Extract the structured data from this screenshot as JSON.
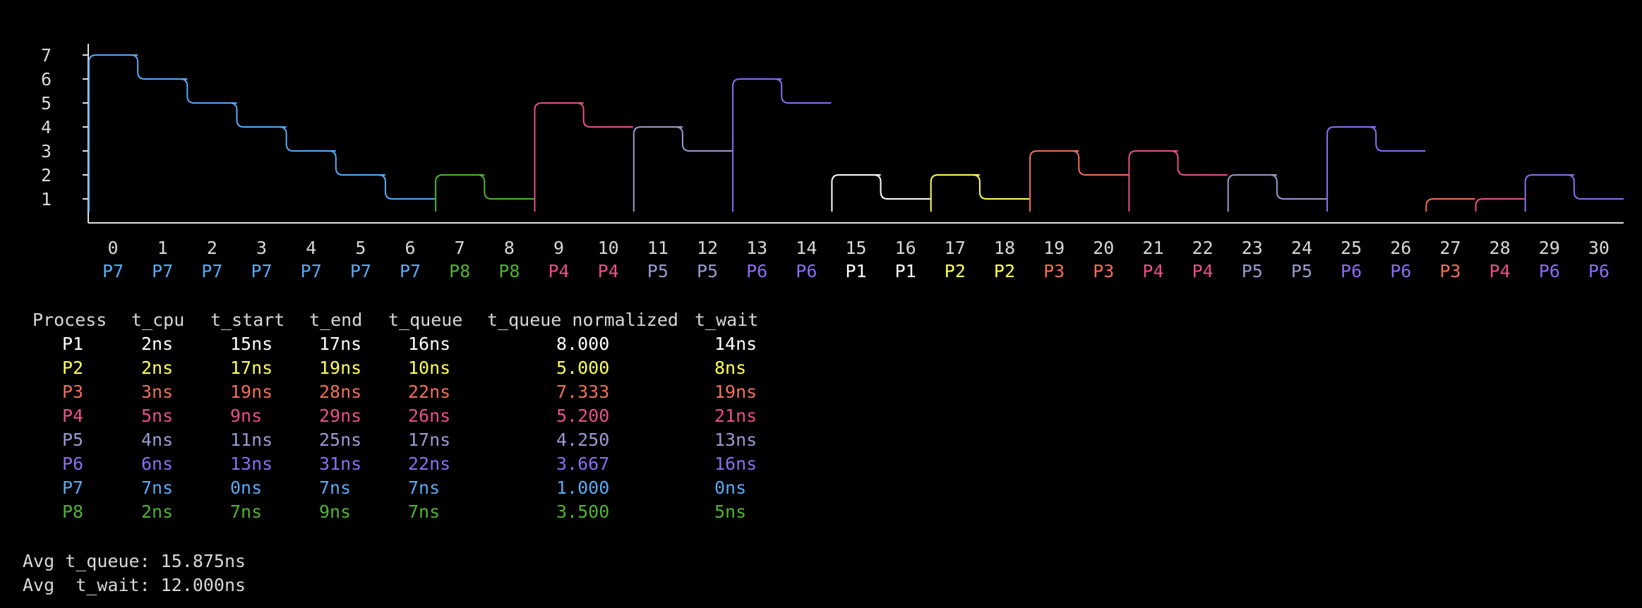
{
  "chart_data": {
    "type": "line",
    "ylim": [
      0,
      7.5
    ],
    "yticks": [
      1,
      2,
      3,
      4,
      5,
      6,
      7
    ],
    "xticks": [
      0,
      1,
      2,
      3,
      4,
      5,
      6,
      7,
      8,
      9,
      10,
      11,
      12,
      13,
      14,
      15,
      16,
      17,
      18,
      19,
      20,
      21,
      22,
      23,
      24,
      25,
      26,
      27,
      28,
      29,
      30
    ],
    "slot_labels": [
      "P7",
      "P7",
      "P7",
      "P7",
      "P7",
      "P7",
      "P7",
      "P8",
      "P8",
      "P4",
      "P4",
      "P5",
      "P5",
      "P6",
      "P6",
      "P1",
      "P1",
      "P2",
      "P2",
      "P3",
      "P3",
      "P4",
      "P4",
      "P5",
      "P5",
      "P6",
      "P6",
      "P3",
      "P4",
      "P6",
      "P6"
    ],
    "remaining": [
      7,
      6,
      5,
      4,
      3,
      2,
      1,
      2,
      1,
      5,
      4,
      4,
      3,
      6,
      5,
      2,
      1,
      2,
      1,
      3,
      2,
      3,
      2,
      2,
      1,
      4,
      3,
      1,
      1,
      2,
      1
    ],
    "colors": {
      "P1": "#ffffff",
      "P2": "#ffff5a",
      "P3": "#f0705a",
      "P4": "#e8508a",
      "P5": "#9a9ad0",
      "P6": "#8a6ef0",
      "P7": "#5aaaf5",
      "P8": "#50b432"
    }
  },
  "table": {
    "headers": [
      "Process",
      "t_cpu",
      "t_start",
      "t_end",
      "t_queue",
      "t_queue normalized",
      "t_wait"
    ],
    "rows": [
      {
        "process": "P1",
        "t_cpu": "2ns",
        "t_start": "15ns",
        "t_end": "17ns",
        "t_queue": "16ns",
        "t_queue_normalized": "8.000",
        "t_wait": "14ns"
      },
      {
        "process": "P2",
        "t_cpu": "2ns",
        "t_start": "17ns",
        "t_end": "19ns",
        "t_queue": "10ns",
        "t_queue_normalized": "5.000",
        "t_wait": "8ns"
      },
      {
        "process": "P3",
        "t_cpu": "3ns",
        "t_start": "19ns",
        "t_end": "28ns",
        "t_queue": "22ns",
        "t_queue_normalized": "7.333",
        "t_wait": "19ns"
      },
      {
        "process": "P4",
        "t_cpu": "5ns",
        "t_start": "9ns",
        "t_end": "29ns",
        "t_queue": "26ns",
        "t_queue_normalized": "5.200",
        "t_wait": "21ns"
      },
      {
        "process": "P5",
        "t_cpu": "4ns",
        "t_start": "11ns",
        "t_end": "25ns",
        "t_queue": "17ns",
        "t_queue_normalized": "4.250",
        "t_wait": "13ns"
      },
      {
        "process": "P6",
        "t_cpu": "6ns",
        "t_start": "13ns",
        "t_end": "31ns",
        "t_queue": "22ns",
        "t_queue_normalized": "3.667",
        "t_wait": "16ns"
      },
      {
        "process": "P7",
        "t_cpu": "7ns",
        "t_start": "0ns",
        "t_end": "7ns",
        "t_queue": "7ns",
        "t_queue_normalized": "1.000",
        "t_wait": "0ns"
      },
      {
        "process": "P8",
        "t_cpu": "2ns",
        "t_start": "7ns",
        "t_end": "9ns",
        "t_queue": "7ns",
        "t_queue_normalized": "3.500",
        "t_wait": "5ns"
      }
    ]
  },
  "summary": {
    "avg_t_queue": "Avg t_queue: 15.875ns",
    "avg_t_wait": "Avg  t_wait: 12.000ns"
  }
}
